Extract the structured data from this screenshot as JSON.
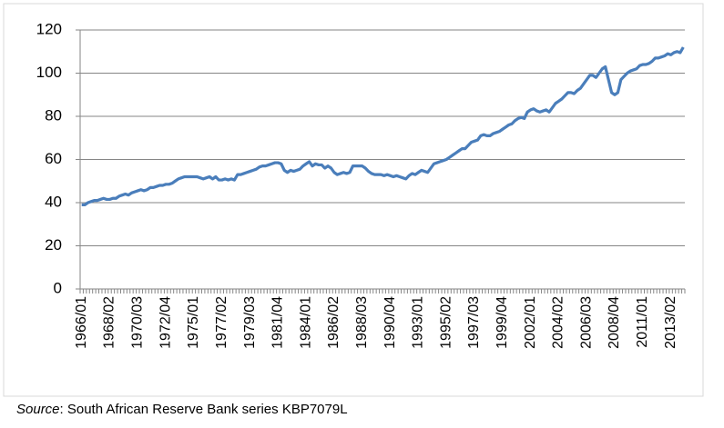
{
  "chart_data": {
    "type": "line",
    "categories": [
      "1966/01",
      null,
      null,
      null,
      null,
      null,
      null,
      null,
      null,
      "1968/02",
      null,
      null,
      null,
      null,
      null,
      null,
      null,
      null,
      "1970/03",
      null,
      null,
      null,
      null,
      null,
      null,
      null,
      null,
      "1972/04",
      null,
      null,
      null,
      null,
      null,
      null,
      null,
      null,
      "1975/01",
      null,
      null,
      null,
      null,
      null,
      null,
      null,
      null,
      "1977/02",
      null,
      null,
      null,
      null,
      null,
      null,
      null,
      null,
      "1979/03",
      null,
      null,
      null,
      null,
      null,
      null,
      null,
      null,
      "1981/04",
      null,
      null,
      null,
      null,
      null,
      null,
      null,
      null,
      "1984/01",
      null,
      null,
      null,
      null,
      null,
      null,
      null,
      null,
      "1986/02",
      null,
      null,
      null,
      null,
      null,
      null,
      null,
      null,
      "1988/03",
      null,
      null,
      null,
      null,
      null,
      null,
      null,
      null,
      "1990/04",
      null,
      null,
      null,
      null,
      null,
      null,
      null,
      null,
      "1993/01",
      null,
      null,
      null,
      null,
      null,
      null,
      null,
      null,
      "1995/02",
      null,
      null,
      null,
      null,
      null,
      null,
      null,
      null,
      "1997/03",
      null,
      null,
      null,
      null,
      null,
      null,
      null,
      null,
      "1999/04",
      null,
      null,
      null,
      null,
      null,
      null,
      null,
      null,
      "2002/01",
      null,
      null,
      null,
      null,
      null,
      null,
      null,
      null,
      "2004/02",
      null,
      null,
      null,
      null,
      null,
      null,
      null,
      null,
      "2006/03",
      null,
      null,
      null,
      null,
      null,
      null,
      null,
      null,
      "2008/04",
      null,
      null,
      null,
      null,
      null,
      null,
      null,
      null,
      "2011/01",
      null,
      null,
      null,
      null,
      null,
      null,
      null,
      null,
      "2013/02",
      null,
      null,
      null,
      null
    ],
    "series": [
      {
        "color": "#4a7ebb",
        "values": [
          39,
          39,
          40,
          40.5,
          41,
          41,
          41.5,
          42,
          41.5,
          41.5,
          42,
          42,
          43,
          43.5,
          44,
          43.5,
          44.5,
          45,
          45.5,
          46,
          45.5,
          46,
          47,
          47,
          47.5,
          48,
          48,
          48.5,
          48.5,
          49,
          50,
          51,
          51.5,
          52,
          52,
          52,
          52,
          52,
          51.5,
          51,
          51.5,
          52,
          51,
          52,
          50.5,
          50.5,
          51,
          50.5,
          51,
          50.5,
          53,
          53,
          53.5,
          54,
          54.5,
          55,
          55.5,
          56.5,
          57,
          57,
          57.5,
          58,
          58.5,
          58.5,
          58,
          55,
          54,
          55,
          54.5,
          55,
          55.5,
          57,
          58,
          59,
          57,
          58,
          57.5,
          57.5,
          56,
          57,
          56,
          54,
          53,
          53.5,
          54,
          53.5,
          54,
          57,
          57,
          57,
          57,
          56,
          54.5,
          53.5,
          53,
          53,
          53,
          52.5,
          53,
          52.5,
          52,
          52.5,
          52,
          51.5,
          51,
          52.5,
          53.5,
          53,
          54,
          55,
          54.5,
          54,
          56,
          58,
          58.5,
          59,
          59.5,
          60,
          61,
          62,
          63,
          64,
          65,
          65,
          66.5,
          68,
          68.5,
          69,
          71,
          71.5,
          71,
          71,
          72,
          72.5,
          73,
          74,
          75,
          76,
          76.5,
          78,
          79,
          79.5,
          79,
          82,
          83,
          83.5,
          82.5,
          82,
          82.5,
          83,
          82,
          84,
          86,
          87,
          88,
          89.5,
          91,
          91,
          90.5,
          92,
          93,
          95,
          97,
          99,
          99,
          98,
          100,
          102,
          103,
          97,
          91,
          90,
          91,
          97,
          98.5,
          100,
          101,
          101.5,
          102,
          103.5,
          104,
          104,
          104.5,
          105.5,
          107,
          107,
          107.5,
          108,
          109,
          108.5,
          109.5,
          110,
          109.5,
          112
        ]
      }
    ],
    "ylim": [
      0,
      120
    ],
    "yticks": [
      0,
      20,
      40,
      60,
      80,
      100,
      120
    ],
    "grid": true,
    "source": {
      "label": "Source",
      "text": ": South African Reserve Bank series KBP7079L"
    }
  }
}
